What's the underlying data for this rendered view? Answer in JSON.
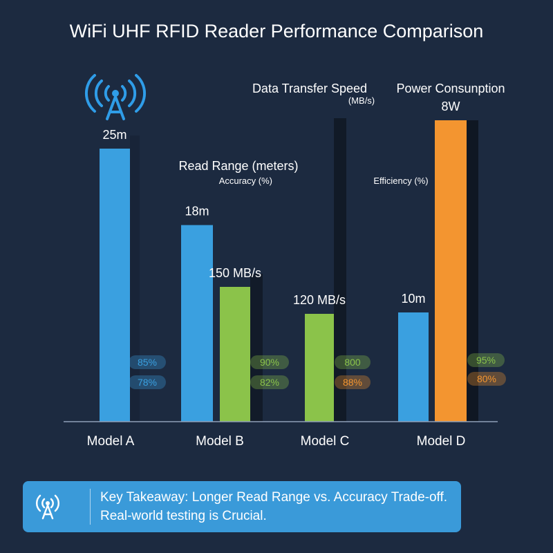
{
  "chart_data": {
    "type": "bar",
    "title": "WiFi UHF RFID Reader Performance Comparison",
    "categories": [
      "Model A",
      "Model B",
      "Model C",
      "Model D"
    ],
    "series": [
      {
        "name": "Read Range (meters)",
        "color": "#3aa0e0",
        "values": [
          25,
          18,
          null,
          10
        ],
        "labels": [
          "25m",
          "18m",
          "",
          "10m"
        ]
      },
      {
        "name": "Data Transfer Speed",
        "color": "#8bc34a",
        "values": [
          null,
          150,
          120,
          null
        ],
        "labels": [
          "",
          "150 MB/s",
          "120 MB/s",
          ""
        ]
      },
      {
        "name": "Power Consunption",
        "color": "#f39530",
        "values": [
          null,
          null,
          null,
          8
        ],
        "labels": [
          "",
          "",
          "",
          "8W"
        ]
      }
    ],
    "annotations": {
      "data_speed_unit": "(MB/s)",
      "accuracy_label": "Accuracy (%)",
      "efficiency_label": "Efficiency (%)"
    },
    "pills": [
      {
        "text": "85%",
        "color": "#3aa0e0"
      },
      {
        "text": "78%",
        "color": "#3aa0e0"
      },
      {
        "text": "90%",
        "color": "#8bc34a"
      },
      {
        "text": "82%",
        "color": "#8bc34a"
      },
      {
        "text": "800",
        "color": "#8bc34a"
      },
      {
        "text": "88%",
        "color": "#f39530"
      },
      {
        "text": "95%",
        "color": "#8bc34a"
      },
      {
        "text": "80%",
        "color": "#f39530"
      }
    ]
  },
  "takeaway": {
    "line1": "Key Takeaway: Longer Read Range vs. Accuracy Trade-off.",
    "line2": "Real-world testing is Crucial."
  },
  "icons": {
    "tower": "antenna-tower-icon",
    "takeaway": "antenna-tower-icon"
  }
}
